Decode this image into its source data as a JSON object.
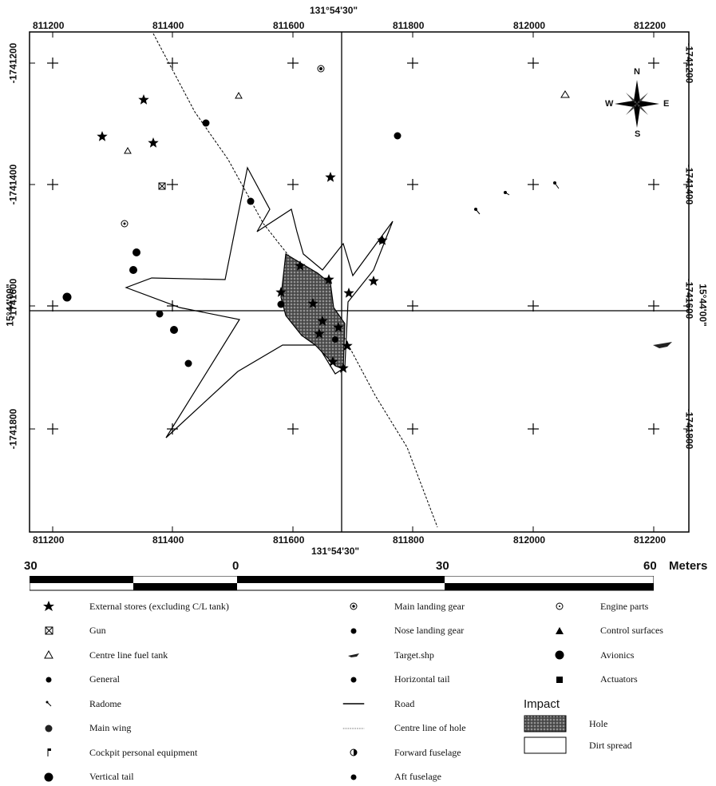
{
  "map": {
    "x_ticks_top": [
      "811200",
      "811400",
      "811600",
      "811800",
      "812000",
      "812200"
    ],
    "x_ticks_bottom": [
      "811200",
      "811400",
      "811600",
      "811800",
      "812000",
      "812200"
    ],
    "y_ticks_left": [
      "-1741200",
      "-1741400",
      "-1741600",
      "-1741800"
    ],
    "y_ticks_right": [
      "-1741200",
      "-1741400",
      "-1741600",
      "-1741800"
    ],
    "longitude_label": "131°54'30\"",
    "latitude_label": "15°44'00\"",
    "compass": {
      "n": "N",
      "s": "S",
      "e": "E",
      "w": "W"
    }
  },
  "scale_bar": {
    "labels": [
      "30",
      "0",
      "30",
      "60"
    ],
    "unit": "Meters"
  },
  "legend": {
    "col1": [
      {
        "symbol": "star",
        "label": "External stores (excluding C/L tank)"
      },
      {
        "symbol": "boxed-x",
        "label": "Gun"
      },
      {
        "symbol": "open-triangle",
        "label": "Centre line fuel tank"
      },
      {
        "symbol": "dot",
        "label": "General"
      },
      {
        "symbol": "radome",
        "label": "Radome"
      },
      {
        "symbol": "dot-large",
        "label": "Main wing"
      },
      {
        "symbol": "flag",
        "label": "Cockpit personal equipment"
      },
      {
        "symbol": "dot-big",
        "label": "Vertical tail"
      }
    ],
    "col2": [
      {
        "symbol": "target-dot",
        "label": "Main landing gear"
      },
      {
        "symbol": "dot",
        "label": "Nose landing gear"
      },
      {
        "symbol": "aircraft",
        "label": "Target.shp"
      },
      {
        "symbol": "dot",
        "label": "Horizontal tail"
      },
      {
        "symbol": "solid-line",
        "label": "Road"
      },
      {
        "symbol": "dashed-line",
        "label": "Centre line of hole"
      },
      {
        "symbol": "half-dot",
        "label": "Forward fuselage"
      },
      {
        "symbol": "dot",
        "label": "Aft fuselage"
      }
    ],
    "col3": [
      {
        "symbol": "ring-dot",
        "label": "Engine parts"
      },
      {
        "symbol": "filled-triangle",
        "label": "Control surfaces"
      },
      {
        "symbol": "dot-big",
        "label": "Avionics"
      },
      {
        "symbol": "filled-square",
        "label": "Actuators"
      }
    ],
    "impact": {
      "title": "Impact",
      "items": [
        {
          "symbol": "hatched-box",
          "label": "Hole"
        },
        {
          "symbol": "empty-box",
          "label": "Dirt spread"
        }
      ]
    }
  }
}
